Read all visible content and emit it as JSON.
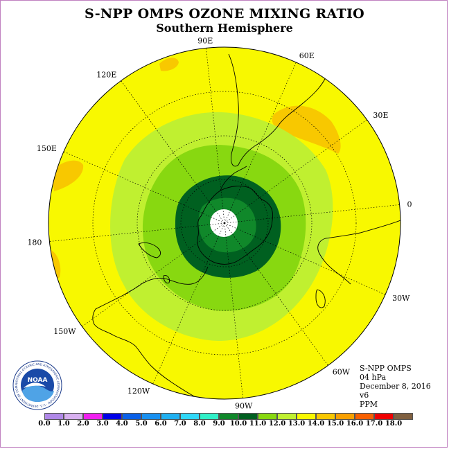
{
  "title": "S-NPP OMPS OZONE MIXING RATIO",
  "subtitle": "Southern Hemisphere",
  "lon_labels": [
    {
      "text": "0",
      "lon": 0
    },
    {
      "text": "30E",
      "lon": 30
    },
    {
      "text": "60E",
      "lon": 60
    },
    {
      "text": "90E",
      "lon": 90
    },
    {
      "text": "120E",
      "lon": 120
    },
    {
      "text": "150E",
      "lon": 150
    },
    {
      "text": "180",
      "lon": 180
    },
    {
      "text": "150W",
      "lon": -150
    },
    {
      "text": "120W",
      "lon": -120
    },
    {
      "text": "90W",
      "lon": -90
    },
    {
      "text": "60W",
      "lon": -60
    },
    {
      "text": "30W",
      "lon": -30
    }
  ],
  "info": {
    "instrument": "S-NPP OMPS",
    "level": "04 hPa",
    "date": "December 8, 2016",
    "version": "v6",
    "units": "PPM"
  },
  "colorbar": {
    "ticks": [
      "0.0",
      "1.0",
      "2.0",
      "3.0",
      "4.0",
      "5.0",
      "6.0",
      "7.0",
      "8.0",
      "9.0",
      "10.0",
      "11.0",
      "12.0",
      "13.0",
      "14.0",
      "15.0",
      "16.0",
      "17.0",
      "18.0"
    ],
    "colors": [
      "#b088e8",
      "#d8b0f0",
      "#f020f0",
      "#0000e8",
      "#0a60e8",
      "#1890f0",
      "#20b0f0",
      "#30d8f8",
      "#30f0c8",
      "#10882a",
      "#006020",
      "#88d810",
      "#c0f030",
      "#f8f800",
      "#f8c800",
      "#f8a000",
      "#f86000",
      "#f00000",
      "#806040"
    ]
  },
  "logo": {
    "text": "NOAA",
    "ring_text": "NATIONAL OCEANIC AND ATMOSPHERIC ADMINISTRATION · U.S. DEPARTMENT OF COMMERCE"
  },
  "map_colors": {
    "outer": "#f8f800",
    "ring1": "#c0f030",
    "ring2": "#88d810",
    "ring3": "#006020",
    "ring4": "#10882a",
    "pole": "#ffffff",
    "patch": "#f8c800"
  }
}
